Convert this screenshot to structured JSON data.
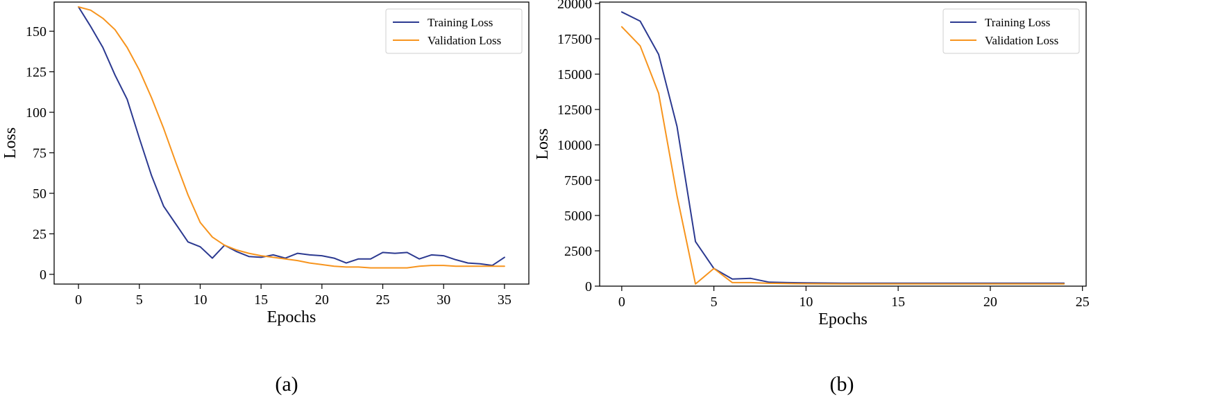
{
  "chart_data": [
    {
      "type": "line",
      "panel_label": "(a)",
      "xlabel": "Epochs",
      "ylabel": "Loss",
      "xlim": [
        -2,
        37
      ],
      "ylim": [
        -6,
        168
      ],
      "xticks": [
        0,
        5,
        10,
        15,
        20,
        25,
        30,
        35
      ],
      "yticks": [
        0,
        25,
        50,
        75,
        100,
        125,
        150
      ],
      "legend_position": "top-right",
      "x": [
        0,
        1,
        2,
        3,
        4,
        5,
        6,
        7,
        8,
        9,
        10,
        11,
        12,
        13,
        14,
        15,
        16,
        17,
        18,
        19,
        20,
        21,
        22,
        23,
        24,
        25,
        26,
        27,
        28,
        29,
        30,
        31,
        32,
        33,
        34,
        35
      ],
      "series": [
        {
          "name": "Training Loss",
          "color": "#2b3990",
          "values": [
            165,
            153,
            140,
            123,
            108,
            84,
            61,
            42,
            31,
            20,
            17,
            10,
            18,
            14,
            11,
            10.5,
            12,
            10,
            13,
            12,
            11.5,
            10,
            7,
            9.5,
            9.5,
            13.5,
            13,
            13.5,
            9.5,
            12,
            11.5,
            9,
            7,
            6.5,
            5.5,
            10.5
          ]
        },
        {
          "name": "Validation Loss",
          "color": "#f7941d",
          "values": [
            165,
            163,
            158,
            151,
            140,
            126,
            109,
            90,
            69,
            49,
            32,
            23,
            18,
            15,
            13,
            11.5,
            10.5,
            9.5,
            8.5,
            7,
            6,
            5,
            4.5,
            4.5,
            4,
            4,
            4,
            4,
            5,
            5.5,
            5.5,
            5,
            5,
            5,
            5,
            5
          ]
        }
      ]
    },
    {
      "type": "line",
      "panel_label": "(b)",
      "xlabel": "Epochs",
      "ylabel": "Loss",
      "xlim": [
        -1.2,
        25.2
      ],
      "ylim": [
        0,
        20100
      ],
      "xticks": [
        0,
        5,
        10,
        15,
        20,
        25
      ],
      "yticks": [
        0,
        2500,
        5000,
        7500,
        10000,
        12500,
        15000,
        17500,
        20000
      ],
      "legend_position": "top-right",
      "x": [
        0,
        1,
        2,
        3,
        4,
        5,
        6,
        7,
        8,
        9,
        10,
        11,
        12,
        13,
        14,
        15,
        16,
        17,
        18,
        19,
        20,
        21,
        22,
        23,
        24
      ],
      "series": [
        {
          "name": "Training Loss",
          "color": "#2b3990",
          "values": [
            19400,
            18750,
            16400,
            11300,
            3150,
            1250,
            500,
            550,
            280,
            250,
            230,
            220,
            210,
            210,
            210,
            210,
            210,
            210,
            210,
            210,
            210,
            210,
            210,
            210,
            210
          ]
        },
        {
          "name": "Validation Loss",
          "color": "#f7941d",
          "values": [
            18350,
            17000,
            13650,
            6400,
            150,
            1250,
            250,
            250,
            200,
            180,
            170,
            165,
            160,
            160,
            160,
            160,
            160,
            160,
            160,
            160,
            160,
            160,
            160,
            160,
            160
          ]
        }
      ]
    }
  ]
}
